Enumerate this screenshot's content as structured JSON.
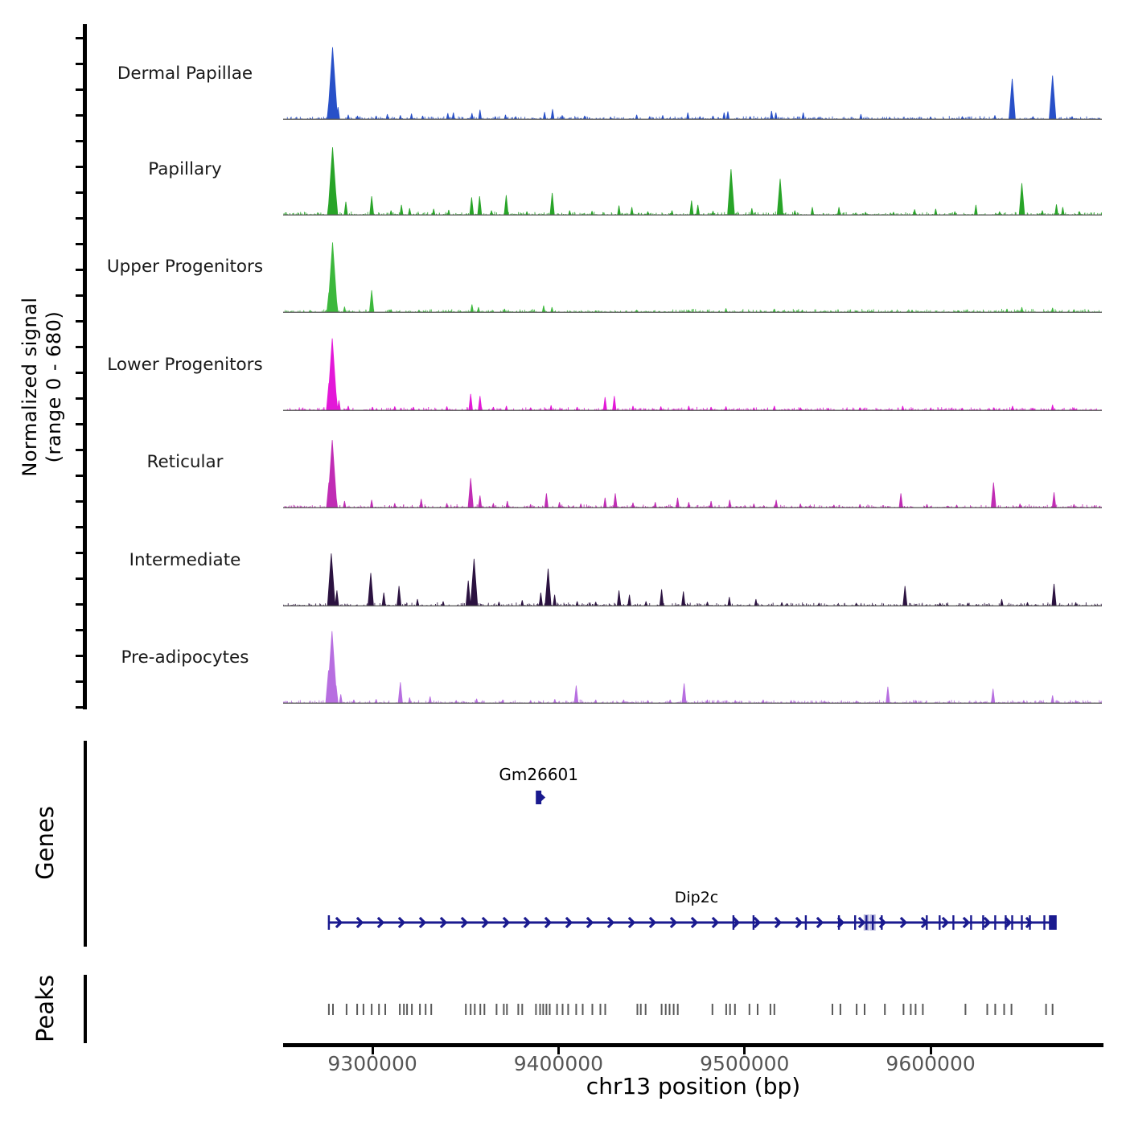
{
  "labels": {
    "y_axis_line1": "Normalized signal",
    "y_axis_line2": "(range 0 - 680)",
    "genes": "Genes",
    "peaks": "Peaks",
    "x_axis": "chr13 position (bp)"
  },
  "chart_data": {
    "type": "area",
    "xlabel": "chr13 position (bp)",
    "ylabel": "Normalized signal (range 0 - 680)",
    "x_range_bp": [
      9252000,
      9692000
    ],
    "x_ticks_bp": [
      9300000,
      9400000,
      9500000,
      9600000
    ],
    "y_range": [
      0,
      680
    ],
    "grid": false,
    "legend": false,
    "tracks": [
      {
        "name": "Dermal Papillae",
        "color": "#2850c8",
        "peaks": [
          [
            9276800,
            200
          ],
          [
            9278600,
            660
          ],
          [
            9279800,
            250
          ],
          [
            9281500,
            110
          ],
          [
            9287000,
            40
          ],
          [
            9292000,
            30
          ],
          [
            9302000,
            30
          ],
          [
            9308000,
            45
          ],
          [
            9315000,
            35
          ],
          [
            9321000,
            50
          ],
          [
            9327000,
            30
          ],
          [
            9340500,
            55
          ],
          [
            9343500,
            60
          ],
          [
            9353500,
            55
          ],
          [
            9357800,
            85
          ],
          [
            9366000,
            25
          ],
          [
            9371500,
            40
          ],
          [
            9377000,
            25
          ],
          [
            9392500,
            65
          ],
          [
            9396800,
            90
          ],
          [
            9402000,
            35
          ],
          [
            9414000,
            30
          ],
          [
            9428000,
            20
          ],
          [
            9442000,
            40
          ],
          [
            9449000,
            25
          ],
          [
            9456000,
            35
          ],
          [
            9469500,
            60
          ],
          [
            9476000,
            25
          ],
          [
            9483000,
            30
          ],
          [
            9489000,
            60
          ],
          [
            9491000,
            70
          ],
          [
            9503000,
            25
          ],
          [
            9514500,
            75
          ],
          [
            9516800,
            60
          ],
          [
            9531500,
            60
          ],
          [
            9540000,
            20
          ],
          [
            9562500,
            45
          ],
          [
            9578000,
            15
          ],
          [
            9600000,
            20
          ],
          [
            9617000,
            25
          ],
          [
            9634500,
            35
          ],
          [
            9643800,
            370
          ],
          [
            9655000,
            25
          ],
          [
            9665500,
            400
          ],
          [
            9676000,
            25
          ]
        ]
      },
      {
        "name": "Papillary",
        "color": "#28a428",
        "peaks": [
          [
            9276800,
            150
          ],
          [
            9278600,
            620
          ],
          [
            9280000,
            260
          ],
          [
            9285700,
            120
          ],
          [
            9299600,
            170
          ],
          [
            9310000,
            40
          ],
          [
            9315600,
            90
          ],
          [
            9320000,
            60
          ],
          [
            9332900,
            55
          ],
          [
            9341000,
            45
          ],
          [
            9353300,
            160
          ],
          [
            9357600,
            170
          ],
          [
            9364000,
            40
          ],
          [
            9371900,
            180
          ],
          [
            9383000,
            30
          ],
          [
            9396600,
            200
          ],
          [
            9406000,
            40
          ],
          [
            9418000,
            35
          ],
          [
            9432500,
            85
          ],
          [
            9439400,
            70
          ],
          [
            9448000,
            30
          ],
          [
            9461000,
            40
          ],
          [
            9471500,
            130
          ],
          [
            9474900,
            90
          ],
          [
            9483000,
            35
          ],
          [
            9492700,
            420
          ],
          [
            9503900,
            60
          ],
          [
            9519100,
            330
          ],
          [
            9527000,
            40
          ],
          [
            9536400,
            70
          ],
          [
            9550700,
            70
          ],
          [
            9565000,
            25
          ],
          [
            9580000,
            25
          ],
          [
            9591400,
            50
          ],
          [
            9602700,
            55
          ],
          [
            9613000,
            30
          ],
          [
            9624300,
            90
          ],
          [
            9637000,
            30
          ],
          [
            9649000,
            290
          ],
          [
            9660000,
            40
          ],
          [
            9667600,
            95
          ],
          [
            9671000,
            70
          ],
          [
            9680000,
            30
          ]
        ]
      },
      {
        "name": "Upper Progenitors",
        "color": "#3cb83c",
        "peaks": [
          [
            9276600,
            180
          ],
          [
            9278600,
            640
          ],
          [
            9280500,
            140
          ],
          [
            9285000,
            50
          ],
          [
            9299600,
            200
          ],
          [
            9310000,
            25
          ],
          [
            9325000,
            20
          ],
          [
            9353500,
            70
          ],
          [
            9357000,
            45
          ],
          [
            9371000,
            30
          ],
          [
            9392000,
            60
          ],
          [
            9396500,
            45
          ],
          [
            9420000,
            15
          ],
          [
            9442000,
            20
          ],
          [
            9470000,
            20
          ],
          [
            9490000,
            35
          ],
          [
            9516000,
            30
          ],
          [
            9531000,
            20
          ],
          [
            9560000,
            15
          ],
          [
            9590000,
            20
          ],
          [
            9615000,
            15
          ],
          [
            9641000,
            30
          ],
          [
            9649000,
            45
          ],
          [
            9665500,
            40
          ],
          [
            9677000,
            25
          ]
        ]
      },
      {
        "name": "Lower Progenitors",
        "color": "#e318d8",
        "peaks": [
          [
            9276600,
            250
          ],
          [
            9278400,
            660
          ],
          [
            9280200,
            200
          ],
          [
            9282000,
            90
          ],
          [
            9287000,
            40
          ],
          [
            9300000,
            30
          ],
          [
            9312000,
            35
          ],
          [
            9322000,
            30
          ],
          [
            9340000,
            35
          ],
          [
            9352800,
            150
          ],
          [
            9357800,
            130
          ],
          [
            9365000,
            30
          ],
          [
            9372000,
            40
          ],
          [
            9385000,
            25
          ],
          [
            9396000,
            45
          ],
          [
            9410000,
            30
          ],
          [
            9425000,
            120
          ],
          [
            9430000,
            130
          ],
          [
            9440000,
            40
          ],
          [
            9455000,
            35
          ],
          [
            9470000,
            40
          ],
          [
            9482000,
            30
          ],
          [
            9490000,
            35
          ],
          [
            9505000,
            25
          ],
          [
            9516000,
            40
          ],
          [
            9530000,
            25
          ],
          [
            9545000,
            20
          ],
          [
            9562000,
            25
          ],
          [
            9585000,
            40
          ],
          [
            9600000,
            20
          ],
          [
            9617000,
            20
          ],
          [
            9634000,
            25
          ],
          [
            9644000,
            40
          ],
          [
            9655000,
            20
          ],
          [
            9665500,
            50
          ],
          [
            9677000,
            25
          ]
        ]
      },
      {
        "name": "Reticular",
        "color": "#c02cb4",
        "peaks": [
          [
            9276600,
            230
          ],
          [
            9278400,
            620
          ],
          [
            9280300,
            120
          ],
          [
            9285000,
            60
          ],
          [
            9299600,
            70
          ],
          [
            9312000,
            40
          ],
          [
            9326200,
            80
          ],
          [
            9340000,
            40
          ],
          [
            9352800,
            270
          ],
          [
            9357800,
            110
          ],
          [
            9365000,
            40
          ],
          [
            9372500,
            60
          ],
          [
            9385000,
            30
          ],
          [
            9393500,
            130
          ],
          [
            9400500,
            50
          ],
          [
            9412000,
            35
          ],
          [
            9425000,
            90
          ],
          [
            9430500,
            130
          ],
          [
            9440000,
            45
          ],
          [
            9452000,
            50
          ],
          [
            9464000,
            90
          ],
          [
            9470000,
            50
          ],
          [
            9482000,
            60
          ],
          [
            9492000,
            70
          ],
          [
            9505000,
            35
          ],
          [
            9517000,
            70
          ],
          [
            9530000,
            35
          ],
          [
            9548000,
            25
          ],
          [
            9562000,
            30
          ],
          [
            9584000,
            130
          ],
          [
            9598000,
            30
          ],
          [
            9614000,
            25
          ],
          [
            9633800,
            230
          ],
          [
            9648000,
            35
          ],
          [
            9666300,
            140
          ],
          [
            9677000,
            30
          ]
        ]
      },
      {
        "name": "Intermediate",
        "color": "#2b1240",
        "peaks": [
          [
            9277900,
            480
          ],
          [
            9280900,
            140
          ],
          [
            9299100,
            300
          ],
          [
            9306100,
            120
          ],
          [
            9314300,
            180
          ],
          [
            9324200,
            60
          ],
          [
            9338000,
            40
          ],
          [
            9351500,
            230
          ],
          [
            9354600,
            430
          ],
          [
            9368000,
            35
          ],
          [
            9380500,
            50
          ],
          [
            9390500,
            120
          ],
          [
            9394400,
            340
          ],
          [
            9397900,
            100
          ],
          [
            9410000,
            40
          ],
          [
            9420000,
            35
          ],
          [
            9432500,
            140
          ],
          [
            9438100,
            100
          ],
          [
            9447000,
            40
          ],
          [
            9455400,
            150
          ],
          [
            9467100,
            130
          ],
          [
            9480000,
            35
          ],
          [
            9491800,
            80
          ],
          [
            9506100,
            60
          ],
          [
            9520000,
            30
          ],
          [
            9540000,
            25
          ],
          [
            9560000,
            25
          ],
          [
            9586200,
            180
          ],
          [
            9605000,
            25
          ],
          [
            9620000,
            25
          ],
          [
            9638200,
            60
          ],
          [
            9652000,
            30
          ],
          [
            9666300,
            200
          ],
          [
            9678000,
            30
          ]
        ]
      },
      {
        "name": "Pre-adipocytes",
        "color": "#b76ee0",
        "peaks": [
          [
            9276400,
            300
          ],
          [
            9278300,
            660
          ],
          [
            9280500,
            160
          ],
          [
            9283000,
            80
          ],
          [
            9290000,
            30
          ],
          [
            9302000,
            35
          ],
          [
            9315000,
            190
          ],
          [
            9320000,
            50
          ],
          [
            9331000,
            60
          ],
          [
            9345000,
            25
          ],
          [
            9356000,
            40
          ],
          [
            9370000,
            30
          ],
          [
            9385000,
            25
          ],
          [
            9398000,
            35
          ],
          [
            9409500,
            160
          ],
          [
            9420000,
            30
          ],
          [
            9435000,
            30
          ],
          [
            9448000,
            25
          ],
          [
            9460000,
            30
          ],
          [
            9467500,
            180
          ],
          [
            9480000,
            30
          ],
          [
            9495000,
            25
          ],
          [
            9510000,
            30
          ],
          [
            9525000,
            25
          ],
          [
            9543000,
            20
          ],
          [
            9560000,
            20
          ],
          [
            9577000,
            150
          ],
          [
            9592000,
            25
          ],
          [
            9610000,
            20
          ],
          [
            9633500,
            130
          ],
          [
            9650000,
            25
          ],
          [
            9665500,
            70
          ],
          [
            9678000,
            25
          ]
        ]
      }
    ],
    "genes": [
      {
        "name": "Gm26601",
        "start_bp": 9387800,
        "end_bp": 9390800,
        "strand": "+"
      },
      {
        "name": "Dip2c",
        "start_bp": 9276600,
        "end_bp": 9667500,
        "strand": "+",
        "exons_bp": [
          9494000,
          9504800,
          9532900,
          9550700,
          9559400,
          9565500,
          9568900,
          9573700,
          9597900,
          9604800,
          9612200,
          9621700,
          9628200,
          9634700,
          9640300,
          9643800,
          9649000,
          9653300,
          9661100,
          9664100
        ]
      }
    ],
    "peaks_bp": [
      9276600,
      9278800,
      9286100,
      9291800,
      9295200,
      9299600,
      9303500,
      9306900,
      9314700,
      9316900,
      9318600,
      9321200,
      9325500,
      9328600,
      9331600,
      9350200,
      9352800,
      9355000,
      9358000,
      9360200,
      9366700,
      9370600,
      9372300,
      9378400,
      9380500,
      9387900,
      9390100,
      9391800,
      9393500,
      9395300,
      9399200,
      9402200,
      9405200,
      9409500,
      9413000,
      9418200,
      9422500,
      9425100,
      9442400,
      9444200,
      9446800,
      9455400,
      9457600,
      9459700,
      9461900,
      9464100,
      9482700,
      9490100,
      9492200,
      9494800,
      9502600,
      9507000,
      9513900,
      9516000,
      9547200,
      9551500,
      9560200,
      9564500,
      9575400,
      9585400,
      9589300,
      9591900,
      9595800,
      9618700,
      9630400,
      9634700,
      9639500,
      9643400,
      9662000,
      9665500
    ],
    "gene_color": "#1a1a8f",
    "peak_tick_color": "#5a5a5a"
  }
}
